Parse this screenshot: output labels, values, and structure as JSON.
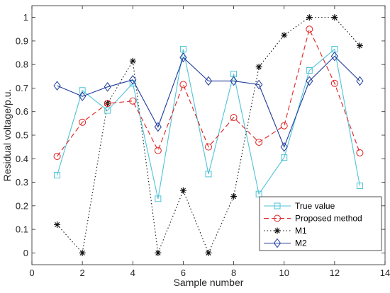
{
  "chart_data": {
    "type": "line",
    "title": "",
    "xlabel": "Sample number",
    "ylabel": "Residual voltage/p.u.",
    "xlim": [
      0,
      14
    ],
    "ylim": [
      -0.05,
      1.05
    ],
    "xticks": [
      0,
      2,
      4,
      6,
      8,
      10,
      12,
      14
    ],
    "yticks": [
      0,
      0.1,
      0.2,
      0.3,
      0.4,
      0.5,
      0.6,
      0.7,
      0.8,
      0.9,
      1
    ],
    "xtick_labels": [
      "0",
      "2",
      "4",
      "6",
      "8",
      "10",
      "12",
      "14"
    ],
    "ytick_labels": [
      "0",
      "0.1",
      "0.2",
      "0.3",
      "0.4",
      "0.5",
      "0.6",
      "0.7",
      "0.8",
      "0.9",
      "1"
    ],
    "grid": false,
    "legend_position": "bottom-right",
    "x": [
      1,
      2,
      3,
      4,
      5,
      6,
      7,
      8,
      9,
      10,
      11,
      12,
      13
    ],
    "series": [
      {
        "name": "True value",
        "color": "#4fc3d6",
        "marker": "square",
        "line_style": "solid",
        "values": [
          0.33,
          0.69,
          0.605,
          0.72,
          0.23,
          0.865,
          0.335,
          0.76,
          0.25,
          0.405,
          0.775,
          0.865,
          0.285
        ]
      },
      {
        "name": "Proposed method",
        "color": "#e02020",
        "marker": "circle",
        "line_style": "dashed",
        "values": [
          0.41,
          0.555,
          0.635,
          0.645,
          0.435,
          0.715,
          0.45,
          0.575,
          0.47,
          0.54,
          0.95,
          0.72,
          0.425
        ]
      },
      {
        "name": "M1",
        "color": "#111111",
        "marker": "asterisk",
        "line_style": "dotted",
        "values": [
          0.12,
          0.0,
          0.635,
          0.815,
          0.0,
          0.265,
          0.0,
          0.24,
          0.79,
          0.925,
          1.0,
          1.0,
          0.88
        ]
      },
      {
        "name": "M2",
        "color": "#1f3b9c",
        "marker": "diamond",
        "line_style": "solid",
        "values": [
          0.71,
          0.665,
          0.705,
          0.735,
          0.535,
          0.83,
          0.73,
          0.73,
          0.715,
          0.45,
          0.73,
          0.835,
          0.73
        ]
      }
    ]
  }
}
